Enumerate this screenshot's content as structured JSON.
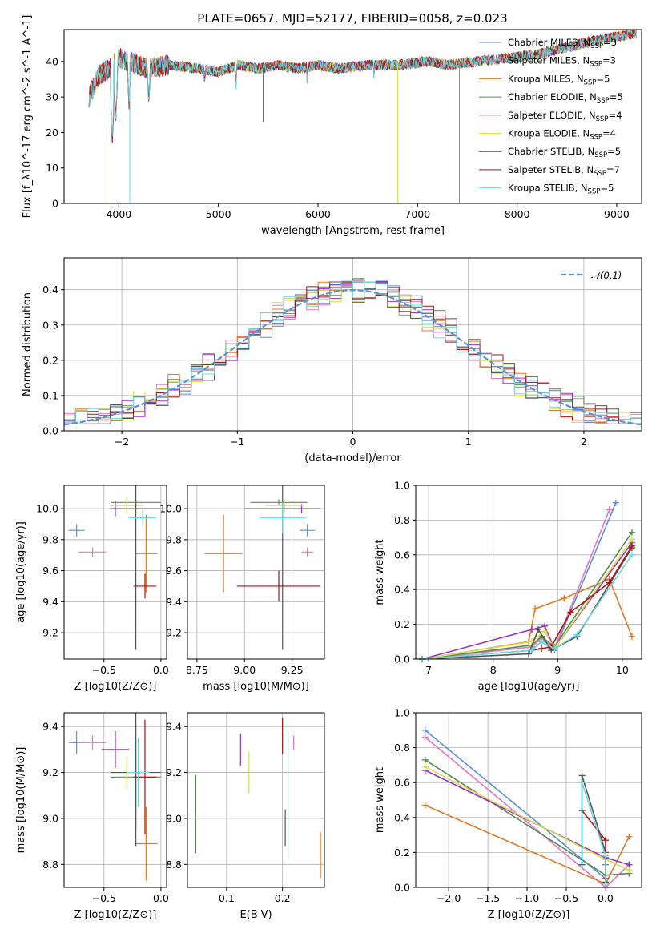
{
  "title": "PLATE=0657, MJD=52177, FIBERID=0058, z=0.023",
  "colors": {
    "chabrier_miles": "#5b8fd6",
    "salpeter_miles": "#e377c2",
    "kroupa_miles": "#e07b2a",
    "chabrier_elodie": "#5a8a5a",
    "salpeter_elodie": "#9b30c9",
    "kroupa_elodie": "#d6e04a",
    "chabrier_stelib": "#555555",
    "salpeter_stelib": "#b01010",
    "kroupa_stelib": "#6dd6e0",
    "normal": "#5b8fd6",
    "grid": "#b0b0b0"
  },
  "chart_data": [
    {
      "id": "spectrum",
      "type": "line",
      "xlabel": "wavelength [Angstrom, rest frame]",
      "ylabel": "Flux [f_λ10^-17 erg cm^-2 s^-1 A^-1]",
      "xlim": [
        3450,
        9250
      ],
      "ylim": [
        0,
        49
      ],
      "xticks": [
        "4000",
        "5000",
        "6000",
        "7000",
        "8000",
        "9000"
      ],
      "yticks": [
        "0",
        "10",
        "20",
        "30",
        "40"
      ],
      "legend_position": "right",
      "legend": [
        {
          "key": "chabrier_miles",
          "label": "Chabrier MILES, N",
          "sub": "SSP",
          "tail": "=3"
        },
        {
          "key": "salpeter_miles",
          "label": "Salpeter MILES, N",
          "sub": "SSP",
          "tail": "=3"
        },
        {
          "key": "kroupa_miles",
          "label": "Kroupa MILES, N",
          "sub": "SSP",
          "tail": "=5"
        },
        {
          "key": "chabrier_elodie",
          "label": "Chabrier ELODIE, N",
          "sub": "SSP",
          "tail": "=5"
        },
        {
          "key": "salpeter_elodie",
          "label": "Salpeter ELODIE, N",
          "sub": "SSP",
          "tail": "=4"
        },
        {
          "key": "kroupa_elodie",
          "label": "Kroupa ELODIE, N",
          "sub": "SSP",
          "tail": "=4"
        },
        {
          "key": "chabrier_stelib",
          "label": "Chabrier STELIB, N",
          "sub": "SSP",
          "tail": "=5"
        },
        {
          "key": "salpeter_stelib",
          "label": "Salpeter STELIB, N",
          "sub": "SSP",
          "tail": "=7"
        },
        {
          "key": "kroupa_stelib",
          "label": "Kroupa STELIB, N",
          "sub": "SSP",
          "tail": "=5"
        }
      ],
      "continuum": [
        [
          3700,
          30
        ],
        [
          3800,
          36
        ],
        [
          3900,
          38
        ],
        [
          4000,
          41
        ],
        [
          4100,
          40
        ],
        [
          4300,
          38
        ],
        [
          4500,
          39
        ],
        [
          4800,
          38
        ],
        [
          5000,
          37
        ],
        [
          5200,
          39
        ],
        [
          5400,
          38
        ],
        [
          5600,
          39
        ],
        [
          5800,
          38
        ],
        [
          6000,
          39
        ],
        [
          6200,
          38
        ],
        [
          6500,
          39
        ],
        [
          6800,
          39
        ],
        [
          7100,
          40
        ],
        [
          7300,
          39
        ],
        [
          7600,
          40
        ],
        [
          7900,
          41
        ],
        [
          8200,
          42
        ],
        [
          8500,
          44
        ],
        [
          8800,
          46
        ],
        [
          9000,
          47
        ],
        [
          9200,
          48
        ]
      ],
      "absorption_lines": [
        {
          "x": 3934,
          "y": 18
        },
        {
          "x": 3969,
          "y": 24
        },
        {
          "x": 4102,
          "y": 28
        },
        {
          "x": 4300,
          "y": 28
        },
        {
          "x": 4861,
          "y": 34
        },
        {
          "x": 5175,
          "y": 33
        },
        {
          "x": 5892,
          "y": 34
        },
        {
          "x": 6563,
          "y": 36
        }
      ],
      "spikes": [
        {
          "x": 3880,
          "y": 0,
          "series": "kroupa_elodie"
        },
        {
          "x": 4110,
          "y": 0,
          "series": "kroupa_stelib"
        },
        {
          "x": 6800,
          "y": 0,
          "series": "kroupa_elodie"
        },
        {
          "x": 7420,
          "y": 0,
          "series": "kroupa_miles"
        },
        {
          "x": 5450,
          "y": 23,
          "series": "chabrier_stelib"
        }
      ]
    },
    {
      "id": "residuals",
      "type": "histogram",
      "xlabel": "(data-model)/error",
      "ylabel": "Normed distribution",
      "xlim": [
        -2.5,
        2.5
      ],
      "ylim": [
        0,
        0.49
      ],
      "xticks": [
        "−2",
        "−1",
        "0",
        "1",
        "2"
      ],
      "yticks": [
        "0.0",
        "0.1",
        "0.2",
        "0.3",
        "0.4"
      ],
      "legend_label": "𝒩(0,1)",
      "legend_position": "top-right",
      "bin_width": 0.1
    },
    {
      "id": "age_vs_Z",
      "type": "errorbar",
      "xlabel": "Z [log10(Z/Z⊙)]",
      "ylabel": "age  [log10(age/yr)]",
      "xlim": [
        -0.85,
        0.05
      ],
      "ylim": [
        9.03,
        10.15
      ],
      "xticks": [
        "−0.5",
        "0.0"
      ],
      "yticks": [
        "9.2",
        "9.4",
        "9.6",
        "9.8",
        "10.0"
      ],
      "points": [
        {
          "series": "chabrier_miles",
          "x": -0.74,
          "y": 9.86,
          "xerr": 0.07,
          "yerr": 0.04
        },
        {
          "series": "salpeter_miles",
          "x": -0.6,
          "y": 9.72,
          "xerr": 0.12,
          "yerr": 0.03
        },
        {
          "series": "kroupa_miles",
          "x": -0.13,
          "y": 9.71,
          "xerr": 0.1,
          "yerr": 0.25
        },
        {
          "series": "chabrier_elodie",
          "x": -0.22,
          "y": 10.04,
          "xerr": 0.22,
          "yerr": 0.02
        },
        {
          "series": "salpeter_elodie",
          "x": -0.4,
          "y": 10.0,
          "xerr": 0.05,
          "yerr": 0.05
        },
        {
          "series": "kroupa_elodie",
          "x": -0.3,
          "y": 10.02,
          "xerr": 0.15,
          "yerr": 0.05
        },
        {
          "series": "chabrier_stelib",
          "x": -0.22,
          "y": 10.0,
          "xerr": 0.22,
          "yerr": 0.91
        },
        {
          "series": "salpeter_stelib",
          "x": -0.14,
          "y": 9.5,
          "xerr": 0.1,
          "yerr": 0.08
        },
        {
          "series": "kroupa_stelib",
          "x": -0.16,
          "y": 9.94,
          "xerr": 0.12,
          "yerr": 0.05
        }
      ]
    },
    {
      "id": "age_vs_mass",
      "type": "errorbar",
      "xlabel": "mass [log10(M/M⊙)]",
      "ylabel": "",
      "xlim": [
        8.7,
        9.42
      ],
      "ylim": [
        9.03,
        10.15
      ],
      "xticks": [
        "8.75",
        "9.00",
        "9.25"
      ],
      "yticks": [
        "9.2",
        "9.4",
        "9.6",
        "9.8",
        "10.0"
      ],
      "points": [
        {
          "series": "chabrier_miles",
          "x": 9.33,
          "y": 9.86,
          "xerr": 0.04,
          "yerr": 0.04
        },
        {
          "series": "salpeter_miles",
          "x": 9.33,
          "y": 9.72,
          "xerr": 0.03,
          "yerr": 0.03
        },
        {
          "series": "kroupa_miles",
          "x": 8.89,
          "y": 9.71,
          "xerr": 0.1,
          "yerr": 0.25
        },
        {
          "series": "chabrier_elodie",
          "x": 9.18,
          "y": 10.04,
          "xerr": 0.15,
          "yerr": 0.02
        },
        {
          "series": "salpeter_elodie",
          "x": 9.3,
          "y": 10.0,
          "xerr": 0.05,
          "yerr": 0.03
        },
        {
          "series": "kroupa_elodie",
          "x": 9.21,
          "y": 10.02,
          "xerr": 0.1,
          "yerr": 0.04
        },
        {
          "series": "chabrier_stelib",
          "x": 9.2,
          "y": 10.0,
          "xerr": 0.2,
          "yerr": 0.91
        },
        {
          "series": "salpeter_stelib",
          "x": 9.18,
          "y": 9.5,
          "xerr": 0.22,
          "yerr": 0.1
        },
        {
          "series": "kroupa_stelib",
          "x": 9.2,
          "y": 9.94,
          "xerr": 0.12,
          "yerr": 0.1
        }
      ]
    },
    {
      "id": "weight_vs_age",
      "type": "line",
      "xlabel": "age  [log10(age/yr)]",
      "ylabel": "mass weight",
      "xlim": [
        6.8,
        10.3
      ],
      "ylim": [
        0,
        1.0
      ],
      "xticks": [
        "7",
        "8",
        "9",
        "10"
      ],
      "yticks": [
        "0.0",
        "0.2",
        "0.4",
        "0.6",
        "0.8",
        "1.0"
      ],
      "series": [
        {
          "key": "chabrier_miles",
          "x": [
            6.9,
            8.6,
            8.75,
            8.95,
            9.9
          ],
          "y": [
            0.0,
            0.05,
            0.1,
            0.05,
            0.9
          ]
        },
        {
          "key": "salpeter_miles",
          "x": [
            6.9,
            8.6,
            8.75,
            8.95,
            9.8
          ],
          "y": [
            0.0,
            0.07,
            0.12,
            0.06,
            0.86
          ]
        },
        {
          "key": "kroupa_miles",
          "x": [
            6.9,
            8.55,
            8.65,
            9.1,
            9.8,
            10.15
          ],
          "y": [
            0.0,
            0.1,
            0.29,
            0.35,
            0.46,
            0.13
          ]
        },
        {
          "key": "chabrier_elodie",
          "x": [
            6.9,
            8.6,
            8.75,
            8.95,
            10.15
          ],
          "y": [
            0.0,
            0.08,
            0.13,
            0.07,
            0.73
          ]
        },
        {
          "key": "salpeter_elodie",
          "x": [
            6.9,
            8.6,
            8.8,
            8.95,
            10.15
          ],
          "y": [
            0.0,
            0.17,
            0.19,
            0.06,
            0.67
          ]
        },
        {
          "key": "kroupa_elodie",
          "x": [
            6.9,
            8.6,
            8.8,
            8.95,
            10.15
          ],
          "y": [
            0.0,
            0.1,
            0.16,
            0.06,
            0.69
          ]
        },
        {
          "key": "chabrier_stelib",
          "x": [
            6.9,
            8.55,
            8.7,
            8.9,
            9.3,
            10.15
          ],
          "y": [
            0.0,
            0.03,
            0.17,
            0.05,
            0.13,
            0.64
          ]
        },
        {
          "key": "salpeter_stelib",
          "x": [
            8.6,
            8.75,
            8.9,
            9.2,
            9.8,
            10.15
          ],
          "y": [
            0.05,
            0.06,
            0.07,
            0.27,
            0.44,
            0.65
          ]
        },
        {
          "key": "kroupa_stelib",
          "x": [
            6.9,
            8.6,
            8.75,
            8.95,
            9.3,
            10.15
          ],
          "y": [
            0.0,
            0.05,
            0.1,
            0.06,
            0.14,
            0.6
          ]
        }
      ]
    },
    {
      "id": "mass_vs_Z",
      "type": "errorbar",
      "xlabel": "Z [log10(Z/Z⊙)]",
      "ylabel": "mass [log10(M/M⊙)]",
      "xlim": [
        -0.85,
        0.05
      ],
      "ylim": [
        8.7,
        9.46
      ],
      "xticks": [
        "−0.5",
        "0.0"
      ],
      "yticks": [
        "8.8",
        "9.0",
        "9.2",
        "9.4"
      ],
      "points": [
        {
          "series": "chabrier_miles",
          "x": -0.74,
          "y": 9.33,
          "xerr": 0.07,
          "yerr": 0.05
        },
        {
          "series": "salpeter_miles",
          "x": -0.6,
          "y": 9.33,
          "xerr": 0.12,
          "yerr": 0.03
        },
        {
          "series": "kroupa_miles",
          "x": -0.13,
          "y": 8.89,
          "xerr": 0.1,
          "yerr": 0.16
        },
        {
          "series": "chabrier_elodie",
          "x": -0.22,
          "y": 9.18,
          "xerr": 0.22,
          "yerr": 0.23
        },
        {
          "series": "salpeter_elodie",
          "x": -0.4,
          "y": 9.3,
          "xerr": 0.12,
          "yerr": 0.08
        },
        {
          "series": "kroupa_elodie",
          "x": -0.3,
          "y": 9.2,
          "xerr": 0.15,
          "yerr": 0.07
        },
        {
          "series": "chabrier_stelib",
          "x": -0.22,
          "y": 9.2,
          "xerr": 0.22,
          "yerr": 0.32
        },
        {
          "series": "salpeter_stelib",
          "x": -0.14,
          "y": 9.18,
          "xerr": 0.1,
          "yerr": 0.25
        },
        {
          "series": "kroupa_stelib",
          "x": -0.2,
          "y": 9.2,
          "xerr": 0.1,
          "yerr": 0.15
        }
      ]
    },
    {
      "id": "mass_vs_ebv",
      "type": "errorbar",
      "xlabel": "E(B-V)",
      "ylabel": "",
      "xlim": [
        0.03,
        0.275
      ],
      "ylim": [
        8.7,
        9.46
      ],
      "xticks": [
        "0.1",
        "0.2"
      ],
      "yticks": [
        "8.8",
        "9.0",
        "9.2",
        "9.4"
      ],
      "points": [
        {
          "series": "chabrier_elodie",
          "x": 0.045,
          "y": 9.02,
          "xerr": 0.0,
          "yerr": 0.17
        },
        {
          "series": "salpeter_elodie",
          "x": 0.125,
          "y": 9.3,
          "xerr": 0.0,
          "yerr": 0.07
        },
        {
          "series": "kroupa_elodie",
          "x": 0.14,
          "y": 9.2,
          "xerr": 0.0,
          "yerr": 0.09
        },
        {
          "series": "salpeter_stelib",
          "x": 0.2,
          "y": 9.36,
          "xerr": 0.0,
          "yerr": 0.08
        },
        {
          "series": "salpeter_miles",
          "x": 0.22,
          "y": 9.33,
          "xerr": 0.0,
          "yerr": 0.03
        },
        {
          "series": "chabrier_stelib",
          "x": 0.205,
          "y": 8.96,
          "xerr": 0.0,
          "yerr": 0.08
        },
        {
          "series": "kroupa_stelib",
          "x": 0.21,
          "y": 9.1,
          "xerr": 0.0,
          "yerr": 0.28
        },
        {
          "series": "kroupa_miles",
          "x": 0.268,
          "y": 8.84,
          "xerr": 0.0,
          "yerr": 0.1
        }
      ]
    },
    {
      "id": "weight_vs_Z",
      "type": "line",
      "xlabel": "Z [log10(Z/Z⊙)]",
      "ylabel": "mass weight",
      "xlim": [
        -2.42,
        0.46
      ],
      "ylim": [
        0,
        1.0
      ],
      "xticks": [
        "−2.0",
        "−1.5",
        "−1.0",
        "−0.5",
        "0.0"
      ],
      "yticks": [
        "0.0",
        "0.2",
        "0.4",
        "0.6",
        "0.8",
        "1.0"
      ],
      "series": [
        {
          "key": "chabrier_miles",
          "x": [
            -2.3,
            0.0,
            0.0
          ],
          "y": [
            0.9,
            0.05,
            0.13
          ]
        },
        {
          "key": "salpeter_miles",
          "x": [
            -2.3,
            0.0,
            0.3
          ],
          "y": [
            0.86,
            0.0,
            0.13
          ]
        },
        {
          "key": "kroupa_miles",
          "x": [
            -2.3,
            0.0,
            0.3
          ],
          "y": [
            0.47,
            0.02,
            0.29
          ]
        },
        {
          "key": "chabrier_elodie",
          "x": [
            -2.3,
            0.0,
            0.3
          ],
          "y": [
            0.73,
            0.07,
            0.08
          ]
        },
        {
          "key": "salpeter_elodie",
          "x": [
            -2.3,
            0.0,
            0.3
          ],
          "y": [
            0.67,
            0.17,
            0.13
          ]
        },
        {
          "key": "kroupa_elodie",
          "x": [
            -2.3,
            0.0,
            0.3
          ],
          "y": [
            0.69,
            0.16,
            0.1
          ]
        },
        {
          "key": "chabrier_stelib",
          "x": [
            -0.3,
            -0.3,
            0.0,
            0.0
          ],
          "y": [
            0.13,
            0.64,
            0.2,
            0.03
          ]
        },
        {
          "key": "salpeter_stelib",
          "x": [
            -0.3,
            0.0,
            0.0
          ],
          "y": [
            0.44,
            0.27,
            0.05
          ]
        },
        {
          "key": "kroupa_stelib",
          "x": [
            -0.3,
            -0.3,
            0.0,
            0.0
          ],
          "y": [
            0.14,
            0.6,
            0.18,
            0.02
          ]
        }
      ]
    }
  ]
}
